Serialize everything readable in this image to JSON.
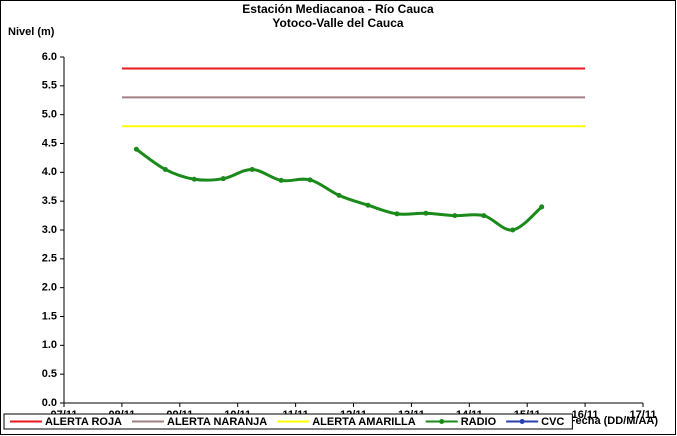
{
  "chart_data": {
    "type": "line",
    "title": [
      "Estación Mediacanoa - Río Cauca",
      "Yotoco-Valle del Cauca"
    ],
    "ylabel": "Nivel (m)",
    "xlabel": "Fecha (DD/M/AA)",
    "xlim": [
      7,
      17
    ],
    "xticks": [
      {
        "value": 7,
        "label": "07/11"
      },
      {
        "value": 8,
        "label": "08/11"
      },
      {
        "value": 9,
        "label": "09/11"
      },
      {
        "value": 10,
        "label": "10/11"
      },
      {
        "value": 11,
        "label": "11/11"
      },
      {
        "value": 12,
        "label": "12/11"
      },
      {
        "value": 13,
        "label": "13/11"
      },
      {
        "value": 14,
        "label": "14/11"
      },
      {
        "value": 15,
        "label": "15/11"
      },
      {
        "value": 16,
        "label": "16/11"
      },
      {
        "value": 17,
        "label": "17/11"
      }
    ],
    "ylim": [
      0,
      6
    ],
    "yticks": [
      {
        "value": 0,
        "label": "0.0"
      },
      {
        "value": 0.5,
        "label": "0.5"
      },
      {
        "value": 1,
        "label": "1.0"
      },
      {
        "value": 1.5,
        "label": "1.5"
      },
      {
        "value": 2,
        "label": "2.0"
      },
      {
        "value": 2.5,
        "label": "2.5"
      },
      {
        "value": 3,
        "label": "3.0"
      },
      {
        "value": 3.5,
        "label": "3.5"
      },
      {
        "value": 4,
        "label": "4.0"
      },
      {
        "value": 4.5,
        "label": "4.5"
      },
      {
        "value": 5,
        "label": "5.0"
      },
      {
        "value": 5.5,
        "label": "5.5"
      },
      {
        "value": 6,
        "label": "6.0"
      }
    ],
    "grid": false,
    "legend": "bottom",
    "series": [
      {
        "name": "ALERTA ROJA",
        "color": "#e8191f",
        "x": [
          8,
          16
        ],
        "values": [
          5.8,
          5.8
        ]
      },
      {
        "name": "ALERTA NARANJA",
        "color": "#a08080",
        "x": [
          8,
          16
        ],
        "values": [
          5.3,
          5.3
        ]
      },
      {
        "name": "ALERTA AMARILLA",
        "color": "#ffff00",
        "x": [
          8,
          16
        ],
        "values": [
          4.8,
          4.8
        ]
      },
      {
        "name": "RADIO",
        "color": "#1a8a1a",
        "markers": true,
        "x": [
          8.25,
          8.75,
          9.25,
          9.75,
          10.25,
          10.75,
          11.25,
          11.75,
          12.25,
          12.75,
          13.25,
          13.75,
          14.25,
          14.75,
          15.25
        ],
        "values": [
          4.4,
          4.05,
          3.88,
          3.89,
          4.05,
          3.86,
          3.87,
          3.6,
          3.43,
          3.28,
          3.29,
          3.25,
          3.25,
          3.0,
          3.4
        ]
      },
      {
        "name": "CVC",
        "color": "#2a3fb0",
        "markers": true,
        "x": [],
        "values": []
      }
    ]
  }
}
